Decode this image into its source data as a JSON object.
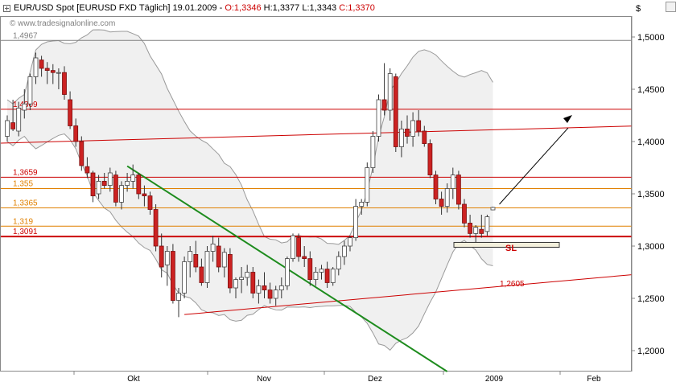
{
  "header": {
    "symbol": "EUR/USD Spot [EURUSD FXD",
    "period": "Täglich]",
    "date": "19.01.2009",
    "open": "O:1,3346",
    "high": "H:1,3377",
    "low": "L:1,3343",
    "close": "C:1,3370",
    "watermark": "© www.tradesignalonline.com",
    "currency": "$"
  },
  "chart_data": {
    "type": "candlestick",
    "y_axis": {
      "ylim": [
        1.18,
        1.52
      ],
      "ticks": [
        "1,2000",
        "1,2500",
        "1,3000",
        "1,3500",
        "1,4000",
        "1,4500",
        "1,5000"
      ],
      "tick_values": [
        1.2,
        1.25,
        1.3,
        1.35,
        1.4,
        1.45,
        1.5
      ]
    },
    "x_axis": {
      "labels": [
        "Okt",
        "Nov",
        "Dez",
        "2009",
        "Feb"
      ]
    },
    "levels": [
      {
        "label": "1,4967",
        "value": 1.4967,
        "color": "#808080"
      },
      {
        "label": "1,4309",
        "value": 1.4309,
        "color": "#cc0000"
      },
      {
        "label": "1,3659",
        "value": 1.3659,
        "color": "#cc0000"
      },
      {
        "label": "1,355",
        "value": 1.355,
        "color": "#e08000"
      },
      {
        "label": "1,3365",
        "value": 1.3365,
        "color": "#e08000"
      },
      {
        "label": "1,319",
        "value": 1.319,
        "color": "#e08000"
      },
      {
        "label": "1,3091",
        "value": 1.3091,
        "color": "#cc0000"
      }
    ],
    "lower_channel_label": "1,2605",
    "stop_label": "SL",
    "candles": [
      [
        1.405,
        1.425,
        1.4,
        1.42
      ],
      [
        1.418,
        1.44,
        1.41,
        1.412
      ],
      [
        1.41,
        1.438,
        1.405,
        1.432
      ],
      [
        1.43,
        1.45,
        1.422,
        1.436
      ],
      [
        1.436,
        1.465,
        1.43,
        1.462
      ],
      [
        1.462,
        1.485,
        1.455,
        1.48
      ],
      [
        1.478,
        1.482,
        1.462,
        1.47
      ],
      [
        1.47,
        1.476,
        1.455,
        1.468
      ],
      [
        1.468,
        1.474,
        1.455,
        1.466
      ],
      [
        1.466,
        1.47,
        1.45,
        1.466
      ],
      [
        1.466,
        1.472,
        1.44,
        1.445
      ],
      [
        1.44,
        1.448,
        1.412,
        1.415
      ],
      [
        1.415,
        1.422,
        1.395,
        1.4
      ],
      [
        1.4,
        1.405,
        1.372,
        1.377
      ],
      [
        1.376,
        1.385,
        1.365,
        1.37
      ],
      [
        1.37,
        1.372,
        1.342,
        1.348
      ],
      [
        1.35,
        1.368,
        1.345,
        1.362
      ],
      [
        1.362,
        1.37,
        1.355,
        1.358
      ],
      [
        1.358,
        1.375,
        1.352,
        1.37
      ],
      [
        1.368,
        1.372,
        1.338,
        1.342
      ],
      [
        1.342,
        1.362,
        1.335,
        1.358
      ],
      [
        1.358,
        1.37,
        1.352,
        1.362
      ],
      [
        1.362,
        1.378,
        1.355,
        1.368
      ],
      [
        1.368,
        1.37,
        1.345,
        1.35
      ],
      [
        1.35,
        1.358,
        1.338,
        1.348
      ],
      [
        1.348,
        1.352,
        1.33,
        1.335
      ],
      [
        1.335,
        1.34,
        1.295,
        1.3
      ],
      [
        1.3,
        1.312,
        1.27,
        1.28
      ],
      [
        1.282,
        1.3,
        1.262,
        1.295
      ],
      [
        1.295,
        1.302,
        1.245,
        1.248
      ],
      [
        1.248,
        1.26,
        1.232,
        1.255
      ],
      [
        1.255,
        1.29,
        1.25,
        1.285
      ],
      [
        1.285,
        1.3,
        1.27,
        1.295
      ],
      [
        1.292,
        1.305,
        1.275,
        1.28
      ],
      [
        1.28,
        1.288,
        1.262,
        1.265
      ],
      [
        1.265,
        1.3,
        1.26,
        1.295
      ],
      [
        1.295,
        1.31,
        1.285,
        1.302
      ],
      [
        1.3,
        1.308,
        1.275,
        1.28
      ],
      [
        1.28,
        1.298,
        1.27,
        1.294
      ],
      [
        1.292,
        1.298,
        1.255,
        1.26
      ],
      [
        1.26,
        1.27,
        1.25,
        1.268
      ],
      [
        1.268,
        1.28,
        1.255,
        1.27
      ],
      [
        1.27,
        1.282,
        1.262,
        1.275
      ],
      [
        1.275,
        1.28,
        1.25,
        1.255
      ],
      [
        1.255,
        1.268,
        1.245,
        1.262
      ],
      [
        1.262,
        1.275,
        1.25,
        1.258
      ],
      [
        1.258,
        1.265,
        1.245,
        1.25
      ],
      [
        1.25,
        1.262,
        1.243,
        1.258
      ],
      [
        1.258,
        1.27,
        1.25,
        1.262
      ],
      [
        1.262,
        1.29,
        1.258,
        1.288
      ],
      [
        1.288,
        1.312,
        1.285,
        1.31
      ],
      [
        1.308,
        1.312,
        1.285,
        1.29
      ],
      [
        1.29,
        1.3,
        1.28,
        1.288
      ],
      [
        1.288,
        1.295,
        1.262,
        1.268
      ],
      [
        1.268,
        1.28,
        1.262,
        1.275
      ],
      [
        1.275,
        1.282,
        1.268,
        1.278
      ],
      [
        1.278,
        1.285,
        1.26,
        1.265
      ],
      [
        1.265,
        1.28,
        1.262,
        1.278
      ],
      [
        1.278,
        1.295,
        1.272,
        1.29
      ],
      [
        1.29,
        1.305,
        1.282,
        1.3
      ],
      [
        1.3,
        1.31,
        1.295,
        1.308
      ],
      [
        1.308,
        1.345,
        1.305,
        1.338
      ],
      [
        1.338,
        1.345,
        1.33,
        1.342
      ],
      [
        1.342,
        1.38,
        1.338,
        1.375
      ],
      [
        1.375,
        1.41,
        1.37,
        1.405
      ],
      [
        1.405,
        1.445,
        1.4,
        1.44
      ],
      [
        1.44,
        1.475,
        1.425,
        1.43
      ],
      [
        1.43,
        1.47,
        1.42,
        1.465
      ],
      [
        1.462,
        1.465,
        1.39,
        1.395
      ],
      [
        1.395,
        1.42,
        1.385,
        1.412
      ],
      [
        1.412,
        1.425,
        1.398,
        1.405
      ],
      [
        1.405,
        1.428,
        1.395,
        1.42
      ],
      [
        1.42,
        1.43,
        1.405,
        1.41
      ],
      [
        1.41,
        1.415,
        1.395,
        1.398
      ],
      [
        1.398,
        1.402,
        1.365,
        1.368
      ],
      [
        1.368,
        1.372,
        1.34,
        1.345
      ],
      [
        1.345,
        1.352,
        1.33,
        1.338
      ],
      [
        1.338,
        1.36,
        1.332,
        1.355
      ],
      [
        1.355,
        1.375,
        1.345,
        1.368
      ],
      [
        1.368,
        1.372,
        1.335,
        1.34
      ],
      [
        1.34,
        1.345,
        1.318,
        1.322
      ],
      [
        1.322,
        1.33,
        1.308,
        1.312
      ],
      [
        1.312,
        1.32,
        1.302,
        1.318
      ],
      [
        1.316,
        1.33,
        1.308,
        1.312
      ],
      [
        1.314,
        1.33,
        1.31,
        1.328
      ],
      [
        1.3346,
        1.3377,
        1.3343,
        1.337
      ]
    ]
  }
}
